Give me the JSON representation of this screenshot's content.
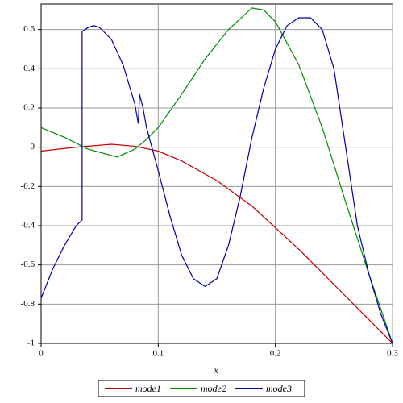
{
  "chart_data": {
    "type": "line",
    "x_label": "x",
    "xlim": [
      0,
      0.3
    ],
    "ylim": [
      -1,
      0.73
    ],
    "xticks": [
      0,
      0.1,
      0.2,
      0.3
    ],
    "yticks": [
      -1,
      -0.8,
      -0.6,
      -0.4,
      -0.2,
      0,
      0.2,
      0.4,
      0.6
    ],
    "grid": true,
    "legend": "bottom",
    "series": [
      {
        "name": "mode1",
        "color": "#c00000",
        "x": [
          0,
          0.03,
          0.06,
          0.08,
          0.1,
          0.12,
          0.15,
          0.18,
          0.2,
          0.22,
          0.25,
          0.28,
          0.3
        ],
        "values": [
          -0.02,
          0,
          0.015,
          0.005,
          -0.02,
          -0.07,
          -0.17,
          -0.3,
          -0.41,
          -0.52,
          -0.7,
          -0.88,
          -1
        ]
      },
      {
        "name": "mode2",
        "color": "#008c00",
        "x": [
          0,
          0.02,
          0.04,
          0.065,
          0.08,
          0.09,
          0.1,
          0.12,
          0.14,
          0.16,
          0.18,
          0.19,
          0.2,
          0.22,
          0.24,
          0.26,
          0.28,
          0.3
        ],
        "values": [
          0.1,
          0.05,
          -0.01,
          -0.05,
          -0.01,
          0.04,
          0.1,
          0.27,
          0.45,
          0.6,
          0.71,
          0.7,
          0.64,
          0.42,
          0.1,
          -0.28,
          -0.65,
          -1
        ]
      },
      {
        "name": "mode3",
        "color": "#0000a8",
        "x": [
          0,
          0.01,
          0.02,
          0.03,
          0.035,
          0.035,
          0.035,
          0.04,
          0.045,
          0.05,
          0.06,
          0.07,
          0.08,
          0.083,
          0.084,
          0.087,
          0.09,
          0.1,
          0.11,
          0.12,
          0.13,
          0.14,
          0.15,
          0.16,
          0.17,
          0.18,
          0.19,
          0.2,
          0.21,
          0.22,
          0.23,
          0.24,
          0.25,
          0.26,
          0.27,
          0.28,
          0.29,
          0.3
        ],
        "values": [
          -0.77,
          -0.62,
          -0.5,
          -0.4,
          -0.37,
          0.1,
          0.59,
          0.61,
          0.62,
          0.61,
          0.55,
          0.42,
          0.22,
          0.12,
          0.27,
          0.2,
          0.1,
          -0.12,
          -0.35,
          -0.55,
          -0.67,
          -0.71,
          -0.67,
          -0.5,
          -0.25,
          0.05,
          0.3,
          0.5,
          0.62,
          0.66,
          0.66,
          0.6,
          0.4,
          0,
          -0.4,
          -0.65,
          -0.85,
          -1
        ]
      }
    ]
  }
}
